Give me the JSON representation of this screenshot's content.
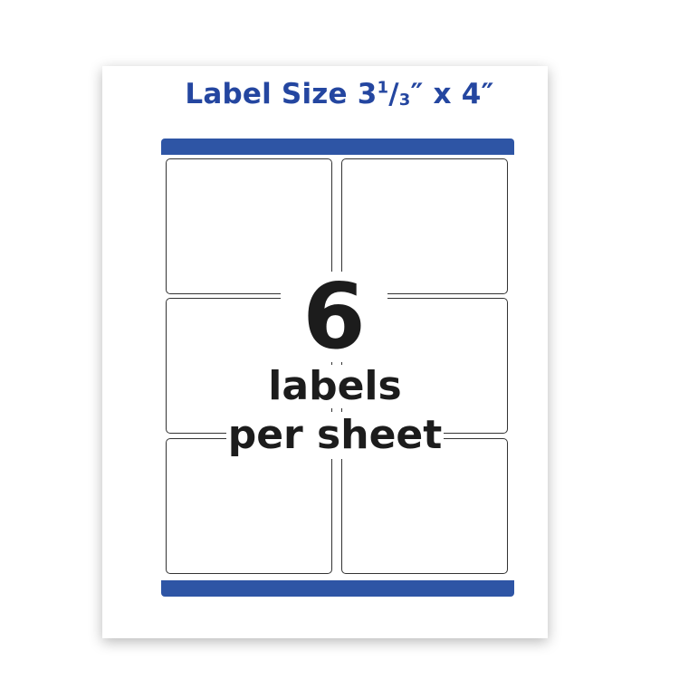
{
  "title": {
    "prefix": "Label Size 3",
    "fraction_num": "1",
    "fraction_sep": "/",
    "fraction_den": "3",
    "suffix": "″ x 4″"
  },
  "count": "6",
  "caption_line1": "labels",
  "caption_line2": "per sheet",
  "colors": {
    "accent": "#2e55a5",
    "title": "#2446a0",
    "text": "#1c1c1c"
  },
  "grid": {
    "columns": 2,
    "rows": 3
  }
}
